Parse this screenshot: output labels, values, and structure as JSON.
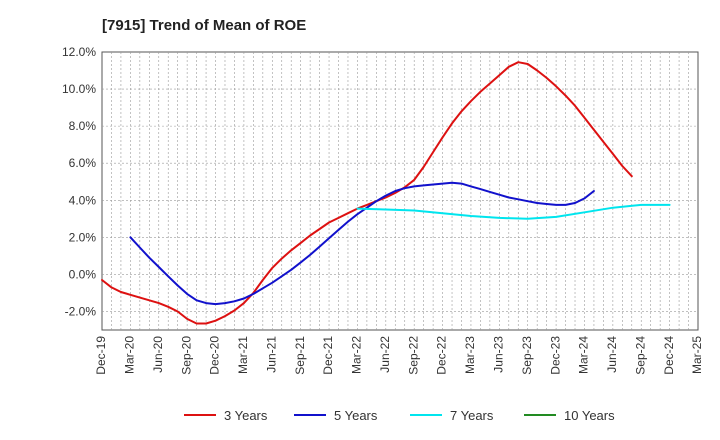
{
  "chart_data": {
    "type": "line",
    "title": "[7915]  Trend of Mean of ROE",
    "xlabel": "",
    "ylabel": "",
    "x_tick_labels": [
      "Dec-19",
      "Mar-20",
      "Jun-20",
      "Sep-20",
      "Dec-20",
      "Mar-21",
      "Jun-21",
      "Sep-21",
      "Dec-21",
      "Mar-22",
      "Jun-22",
      "Sep-22",
      "Dec-22",
      "Mar-23",
      "Jun-23",
      "Sep-23",
      "Dec-23",
      "Mar-24",
      "Jun-24",
      "Sep-24",
      "Dec-24",
      "Mar-25"
    ],
    "y_tick_labels": [
      "12.0%",
      "10.0%",
      "8.0%",
      "6.0%",
      "4.0%",
      "2.0%",
      "0.0%",
      "-2.0%"
    ],
    "y_ticks": [
      12,
      10,
      8,
      6,
      4,
      2,
      0,
      -2
    ],
    "ylim": [
      -3,
      12
    ],
    "grid": true,
    "legend_position": "bottom",
    "series": [
      {
        "name": "3 Years",
        "color": "#dd1111",
        "points": [
          [
            "Dec-19",
            -0.3
          ],
          [
            "Jan-20",
            -0.7
          ],
          [
            "Feb-20",
            -0.95
          ],
          [
            "Mar-20",
            -1.1
          ],
          [
            "Apr-20",
            -1.25
          ],
          [
            "May-20",
            -1.4
          ],
          [
            "Jun-20",
            -1.55
          ],
          [
            "Jul-20",
            -1.75
          ],
          [
            "Aug-20",
            -2.0
          ],
          [
            "Sep-20",
            -2.4
          ],
          [
            "Oct-20",
            -2.65
          ],
          [
            "Nov-20",
            -2.65
          ],
          [
            "Dec-20",
            -2.5
          ],
          [
            "Jan-21",
            -2.25
          ],
          [
            "Feb-21",
            -1.95
          ],
          [
            "Mar-21",
            -1.55
          ],
          [
            "Apr-21",
            -1.0
          ],
          [
            "May-21",
            -0.3
          ],
          [
            "Jun-21",
            0.35
          ],
          [
            "Jul-21",
            0.85
          ],
          [
            "Aug-21",
            1.3
          ],
          [
            "Sep-21",
            1.7
          ],
          [
            "Oct-21",
            2.1
          ],
          [
            "Nov-21",
            2.45
          ],
          [
            "Dec-21",
            2.8
          ],
          [
            "Jan-22",
            3.05
          ],
          [
            "Feb-22",
            3.3
          ],
          [
            "Mar-22",
            3.55
          ],
          [
            "Apr-22",
            3.75
          ],
          [
            "May-22",
            3.95
          ],
          [
            "Jun-22",
            4.15
          ],
          [
            "Jul-22",
            4.4
          ],
          [
            "Aug-22",
            4.7
          ],
          [
            "Sep-22",
            5.1
          ],
          [
            "Oct-22",
            5.8
          ],
          [
            "Nov-22",
            6.6
          ],
          [
            "Dec-22",
            7.4
          ],
          [
            "Jan-23",
            8.15
          ],
          [
            "Feb-23",
            8.8
          ],
          [
            "Mar-23",
            9.35
          ],
          [
            "Apr-23",
            9.85
          ],
          [
            "May-23",
            10.3
          ],
          [
            "Jun-23",
            10.75
          ],
          [
            "Jul-23",
            11.2
          ],
          [
            "Aug-23",
            11.45
          ],
          [
            "Sep-23",
            11.35
          ],
          [
            "Oct-23",
            11.0
          ],
          [
            "Nov-23",
            10.6
          ],
          [
            "Dec-23",
            10.15
          ],
          [
            "Jan-24",
            9.65
          ],
          [
            "Feb-24",
            9.1
          ],
          [
            "Mar-24",
            8.45
          ],
          [
            "Apr-24",
            7.8
          ],
          [
            "May-24",
            7.15
          ],
          [
            "Jun-24",
            6.5
          ],
          [
            "Jul-24",
            5.85
          ],
          [
            "Aug-24",
            5.3
          ]
        ]
      },
      {
        "name": "5 Years",
        "color": "#1111cc",
        "points": [
          [
            "Mar-20",
            2.0
          ],
          [
            "Apr-20",
            1.45
          ],
          [
            "May-20",
            0.9
          ],
          [
            "Jun-20",
            0.4
          ],
          [
            "Jul-20",
            -0.1
          ],
          [
            "Aug-20",
            -0.6
          ],
          [
            "Sep-20",
            -1.05
          ],
          [
            "Oct-20",
            -1.4
          ],
          [
            "Nov-20",
            -1.55
          ],
          [
            "Dec-20",
            -1.6
          ],
          [
            "Jan-21",
            -1.55
          ],
          [
            "Feb-21",
            -1.45
          ],
          [
            "Mar-21",
            -1.3
          ],
          [
            "Apr-21",
            -1.05
          ],
          [
            "May-21",
            -0.75
          ],
          [
            "Jun-21",
            -0.45
          ],
          [
            "Jul-21",
            -0.1
          ],
          [
            "Aug-21",
            0.25
          ],
          [
            "Sep-21",
            0.65
          ],
          [
            "Oct-21",
            1.05
          ],
          [
            "Nov-21",
            1.5
          ],
          [
            "Dec-21",
            1.95
          ],
          [
            "Jan-22",
            2.4
          ],
          [
            "Feb-22",
            2.85
          ],
          [
            "Mar-22",
            3.25
          ],
          [
            "Apr-22",
            3.6
          ],
          [
            "May-22",
            3.95
          ],
          [
            "Jun-22",
            4.25
          ],
          [
            "Jul-22",
            4.5
          ],
          [
            "Aug-22",
            4.65
          ],
          [
            "Sep-22",
            4.75
          ],
          [
            "Oct-22",
            4.8
          ],
          [
            "Nov-22",
            4.85
          ],
          [
            "Dec-22",
            4.9
          ],
          [
            "Jan-23",
            4.95
          ],
          [
            "Feb-23",
            4.9
          ],
          [
            "Mar-23",
            4.75
          ],
          [
            "Apr-23",
            4.6
          ],
          [
            "May-23",
            4.45
          ],
          [
            "Jun-23",
            4.3
          ],
          [
            "Jul-23",
            4.15
          ],
          [
            "Aug-23",
            4.05
          ],
          [
            "Sep-23",
            3.95
          ],
          [
            "Oct-23",
            3.85
          ],
          [
            "Nov-23",
            3.8
          ],
          [
            "Dec-23",
            3.75
          ],
          [
            "Jan-24",
            3.75
          ],
          [
            "Feb-24",
            3.85
          ],
          [
            "Mar-24",
            4.1
          ],
          [
            "Apr-24",
            4.5
          ]
        ]
      },
      {
        "name": "7 Years",
        "color": "#00e5ee",
        "points": [
          [
            "Mar-22",
            3.55
          ],
          [
            "Jun-22",
            3.5
          ],
          [
            "Sep-22",
            3.45
          ],
          [
            "Dec-22",
            3.3
          ],
          [
            "Mar-23",
            3.15
          ],
          [
            "Jun-23",
            3.05
          ],
          [
            "Sep-23",
            3.0
          ],
          [
            "Dec-23",
            3.1
          ],
          [
            "Mar-24",
            3.35
          ],
          [
            "Jun-24",
            3.6
          ],
          [
            "Sep-24",
            3.75
          ],
          [
            "Dec-24",
            3.75
          ]
        ]
      },
      {
        "name": "10 Years",
        "color": "#228b22",
        "points": []
      }
    ]
  }
}
